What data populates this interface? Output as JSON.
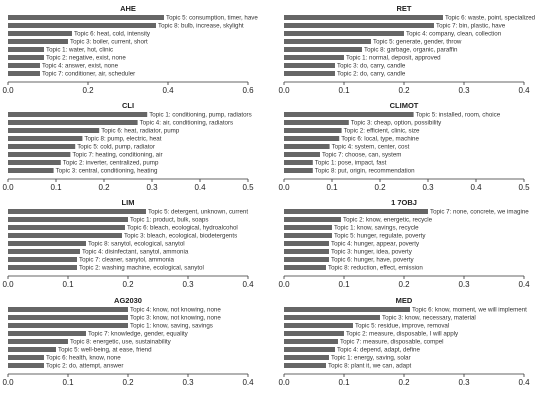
{
  "chart_data": [
    {
      "type": "bar",
      "orientation": "horizontal",
      "title": "AHE",
      "xlim": [
        0,
        0.6
      ],
      "xticks": [
        0.0,
        0.2,
        0.4,
        0.6
      ],
      "bar_color": "#666666",
      "categories": [
        "Topic 5: consumption, timer, have",
        "Topic 8: bulb, increase, skylight",
        "Topic 6: heat, cold, intensity",
        "Topic 3: boiler, current, short",
        "Topic 1: water, hot, clinic",
        "Topic 2: negative, exist, none",
        "Topic 4: answer, exist, none",
        "Topic 7: conditioner, air, scheduler"
      ],
      "values": [
        0.39,
        0.37,
        0.16,
        0.15,
        0.09,
        0.09,
        0.08,
        0.08
      ]
    },
    {
      "type": "bar",
      "orientation": "horizontal",
      "title": "RET",
      "xlim": [
        0,
        0.4
      ],
      "xticks": [
        0.0,
        0.1,
        0.2,
        0.3,
        0.4
      ],
      "bar_color": "#666666",
      "categories": [
        "Topic 6: waste, point, specialized",
        "Topic 7: bin, plastic, have",
        "Topic 4: company, clean, collection",
        "Topic 5: generate, gender, throw",
        "Topic 8: garbage, organic, paraffin",
        "Topic 1: normal, deposit, approved",
        "Topic 3: do, carry, candle",
        "Topic 2: do, carry, candle"
      ],
      "values": [
        0.265,
        0.25,
        0.2,
        0.145,
        0.13,
        0.1,
        0.085,
        0.085
      ]
    },
    {
      "type": "bar",
      "orientation": "horizontal",
      "title": "CLI",
      "xlim": [
        0,
        0.5
      ],
      "xticks": [
        0.0,
        0.1,
        0.2,
        0.3,
        0.4,
        0.5
      ],
      "bar_color": "#666666",
      "categories": [
        "Topic 1: conditioning, pump, radiators",
        "Topic 4: air, conditioning, radiators",
        "Topic 6: heat, radiator, pump",
        "Topic 8: pump, electric, heat",
        "Topic 5: cold, pump, radiator",
        "Topic 7: heating, conditioning, air",
        "Topic 2: inverter, centralized, pump",
        "Topic 3: central, conditioning, heating"
      ],
      "values": [
        0.29,
        0.27,
        0.19,
        0.155,
        0.14,
        0.13,
        0.11,
        0.095
      ]
    },
    {
      "type": "bar",
      "orientation": "horizontal",
      "title": "CLIMOT",
      "xlim": [
        0,
        0.5
      ],
      "xticks": [
        0.0,
        0.1,
        0.2,
        0.3,
        0.4,
        0.5
      ],
      "bar_color": "#666666",
      "categories": [
        "Topic 5: installed, room, choice",
        "Topic 3: cheap, option, possibility",
        "Topic 2: efficient, clinic, size",
        "Topic 6: local, type, machine",
        "Topic 4: system, center, cost",
        "Topic 7: choose, can, system",
        "Topic 1: pose, impact, fast",
        "Topic 8: put, origin, recommendation"
      ],
      "values": [
        0.27,
        0.135,
        0.12,
        0.115,
        0.095,
        0.075,
        0.06,
        0.06
      ]
    },
    {
      "type": "bar",
      "orientation": "horizontal",
      "title": "LIM",
      "xlim": [
        0,
        0.4
      ],
      "xticks": [
        0.0,
        0.1,
        0.2,
        0.3,
        0.4
      ],
      "bar_color": "#666666",
      "categories": [
        "Topic 5: detergent, unknown, current",
        "Topic 1: product, bulk, soaps",
        "Topic 6: bleach, ecological, hydroalcohol",
        "Topic 3: bleach, ecological, biodetergents",
        "Topic 8: sanytol, ecological, sanytol",
        "Topic 4: disinfectant, sanytol, ammonia",
        "Topic 7: cleaner, sanytol, ammonia",
        "Topic 2: washing machine, ecological, sanytol"
      ],
      "values": [
        0.23,
        0.2,
        0.195,
        0.19,
        0.13,
        0.12,
        0.115,
        0.115
      ]
    },
    {
      "type": "bar",
      "orientation": "horizontal",
      "title": "1 7OBJ",
      "xlim": [
        0,
        0.4
      ],
      "xticks": [
        0.0,
        0.1,
        0.2,
        0.3,
        0.4
      ],
      "bar_color": "#666666",
      "categories": [
        "Topic 7: none, concrete, we imagine",
        "Topic 2: know, energetic, recycle",
        "Topic 1: know, savings, recycle",
        "Topic 5: hunger, regulate, poverty",
        "Topic 4: hunger, appear, poverty",
        "Topic 3: hunger, idea, poverty",
        "Topic 6: hunger, have, poverty",
        "Topic 8: reduction, effect, emission"
      ],
      "values": [
        0.24,
        0.095,
        0.08,
        0.08,
        0.075,
        0.075,
        0.075,
        0.07
      ]
    },
    {
      "type": "bar",
      "orientation": "horizontal",
      "title": "AG2030",
      "xlim": [
        0,
        0.4
      ],
      "xticks": [
        0.0,
        0.1,
        0.2,
        0.3,
        0.4
      ],
      "bar_color": "#666666",
      "categories": [
        "Topic 4: know, not knowing, none",
        "Topic 3: know, not knowing, none",
        "Topic 1: know, saving, savings",
        "Topic 7: knowledge, gender, equality",
        "Topic 8: energetic, use, sustainability",
        "Topic 5: well-being, at ease, friend",
        "Topic 6: health, know, none",
        "Topic 2: do, attempt, answer"
      ],
      "values": [
        0.2,
        0.2,
        0.2,
        0.13,
        0.1,
        0.08,
        0.06,
        0.06
      ]
    },
    {
      "type": "bar",
      "orientation": "horizontal",
      "title": "MED",
      "xlim": [
        0,
        0.4
      ],
      "xticks": [
        0.0,
        0.1,
        0.2,
        0.3,
        0.4
      ],
      "bar_color": "#666666",
      "categories": [
        "Topic 6: know, moment, we will implement",
        "Topic 3: know, necessary, material",
        "Topic 5: residue, improve, removal",
        "Topic 2: measure, disposable, I will apply",
        "Topic 7: measure, disposable, compel",
        "Topic 4: depend, adapt, define",
        "Topic 1: energy, saving, solar",
        "Topic 8: plant it, we can, adapt"
      ],
      "values": [
        0.21,
        0.16,
        0.115,
        0.1,
        0.09,
        0.085,
        0.075,
        0.07
      ]
    }
  ]
}
